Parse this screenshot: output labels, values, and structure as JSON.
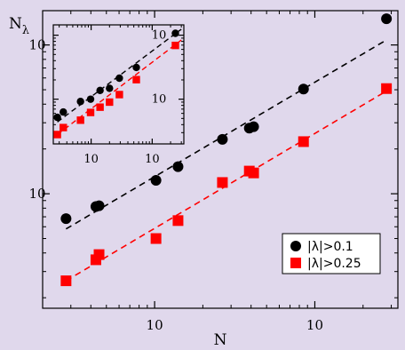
{
  "chart_data": [
    {
      "type": "scatter",
      "panel": "main",
      "xscale": "log",
      "yscale": "log",
      "xlim": [
        2000,
        330000
      ],
      "ylim": [
        17,
        1700
      ],
      "xlabel": "N",
      "ylabel": "N",
      "ylabel_sub": "λ",
      "xticks": [
        {
          "value": 10000,
          "base": "10",
          "exp": "4"
        },
        {
          "value": 100000,
          "base": "10",
          "exp": "5"
        }
      ],
      "yticks": [
        {
          "value": 100,
          "base": "10",
          "exp": "2"
        },
        {
          "value": 1000,
          "base": "10",
          "exp": "3"
        }
      ],
      "grid": false,
      "legend_position": "bottom-right",
      "series": [
        {
          "name": "|λ|>0.1",
          "marker": "circle",
          "color": "#000000",
          "x": [
            2800,
            4300,
            4500,
            10200,
            14000,
            26500,
            39000,
            41500,
            85000,
            280000
          ],
          "y": [
            68,
            82,
            83,
            123,
            152,
            232,
            276,
            282,
            505,
            1500
          ]
        },
        {
          "name": "|λ|>0.25",
          "marker": "square",
          "color": "#ff0000",
          "x": [
            2800,
            4300,
            4500,
            10200,
            14000,
            26500,
            39000,
            41500,
            85000,
            280000
          ],
          "y": [
            26,
            36,
            39,
            50,
            66,
            119,
            142,
            138,
            224,
            509
          ]
        }
      ],
      "fits": [
        {
          "color": "#000000",
          "style": "dashed",
          "x": [
            2800,
            280000
          ],
          "y": [
            58,
            1080
          ]
        },
        {
          "color": "#ff0000",
          "style": "dashed",
          "x": [
            2800,
            280000
          ],
          "y": [
            26,
            490
          ]
        }
      ]
    },
    {
      "type": "scatter",
      "panel": "inset",
      "position": "top-left",
      "xscale": "log",
      "yscale": "log",
      "xlim": [
        2400,
        330000
      ],
      "ylim": [
        20,
        1450
      ],
      "xticks": [
        {
          "value": 10000,
          "base": "10",
          "exp": "4"
        },
        {
          "value": 100000,
          "base": "10",
          "exp": "5"
        }
      ],
      "yticks": [
        {
          "value": 100,
          "base": "10",
          "exp": "2"
        },
        {
          "value": 1000,
          "base": "10",
          "exp": "3"
        }
      ],
      "y_tick_side": "right",
      "series": [
        {
          "marker": "circle",
          "color": "#000000",
          "x": [
            2800,
            3500,
            6700,
            9800,
            14000,
            20000,
            29000,
            55000,
            240000
          ],
          "y": [
            52,
            63,
            92,
            100,
            137,
            148,
            213,
            313,
            1070
          ]
        },
        {
          "marker": "square",
          "color": "#ff0000",
          "x": [
            2800,
            3500,
            6700,
            9800,
            14000,
            20000,
            29000,
            55000,
            240000
          ],
          "y": [
            28,
            36,
            47,
            62,
            75,
            90,
            118,
            202,
            692
          ]
        }
      ],
      "fits": [
        {
          "color": "#000000",
          "style": "dashed",
          "x": [
            2800,
            300000
          ],
          "y": [
            44,
            1240
          ]
        },
        {
          "color": "#ff0000",
          "style": "dashed",
          "x": [
            2800,
            300000
          ],
          "y": [
            28,
            840
          ]
        }
      ]
    }
  ]
}
